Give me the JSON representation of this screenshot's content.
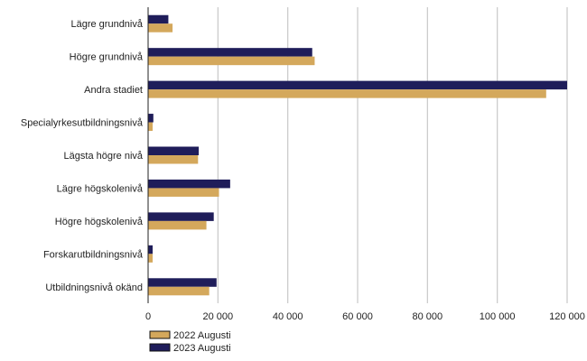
{
  "chart_data": {
    "type": "bar",
    "orientation": "horizontal",
    "categories": [
      "Lägre grundnivå",
      "Högre grundnivå",
      "Andra stadiet",
      "Specialyrkesutbildningsnivå",
      "Lägsta högre nivå",
      "Lägre högskolenivå",
      "Högre högskolenivå",
      "Forskarutbildningsnivå",
      "Utbildningsnivå okänd"
    ],
    "series": [
      {
        "name": "2023 Augusti",
        "color": "#1f1d5a",
        "values": [
          5800,
          47000,
          120000,
          1500,
          14500,
          23500,
          18800,
          1300,
          19600
        ]
      },
      {
        "name": "2022 Augusti",
        "color": "#d4a85c",
        "values": [
          7000,
          47700,
          114000,
          1300,
          14300,
          20300,
          16700,
          1300,
          17500
        ]
      }
    ],
    "xlim": [
      0,
      120000
    ],
    "xticks": [
      0,
      20000,
      40000,
      60000,
      80000,
      100000,
      120000
    ],
    "xtick_labels": [
      "0",
      "20 000",
      "40 000",
      "60 000",
      "80 000",
      "100 000",
      "120 000"
    ],
    "grid": "vertical",
    "legend_position": "bottom-left",
    "legend": [
      "2022 Augusti",
      "2023 Augusti"
    ]
  }
}
